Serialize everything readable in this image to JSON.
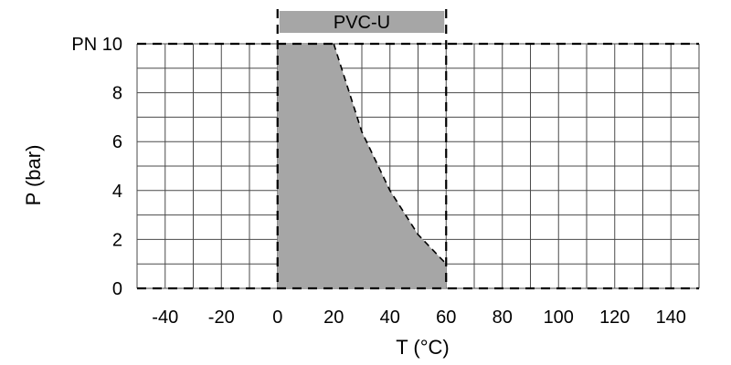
{
  "chart_data": {
    "type": "area",
    "xlabel": "T (°C)",
    "ylabel": "P (bar)",
    "xlim": [
      -50,
      150
    ],
    "ylim": [
      0,
      10
    ],
    "x_ticks": [
      -40,
      -20,
      0,
      20,
      40,
      60,
      80,
      100,
      120,
      140
    ],
    "x_tick_labels": [
      "-40",
      "-20",
      "0",
      "20",
      "40",
      "60",
      "80",
      "100",
      "120",
      "140"
    ],
    "y_ticks": [
      0,
      2,
      4,
      6,
      8,
      10
    ],
    "y_tick_labels": [
      "0",
      "2",
      "4",
      "6",
      "8",
      "PN 10"
    ],
    "grid": true,
    "grid_minor_x_step": 10,
    "grid_minor_y_step": 1,
    "band": {
      "label": "PVC-U",
      "x_range": [
        0,
        60
      ]
    },
    "series": [
      {
        "x": [
          0,
          20,
          30,
          40,
          50,
          60
        ],
        "y": [
          10,
          10,
          6.4,
          4.0,
          2.2,
          1.0
        ]
      }
    ],
    "colors": {
      "fill": "#a6a6a6",
      "grid": "#4a4a4a",
      "dash": "#000000"
    }
  }
}
